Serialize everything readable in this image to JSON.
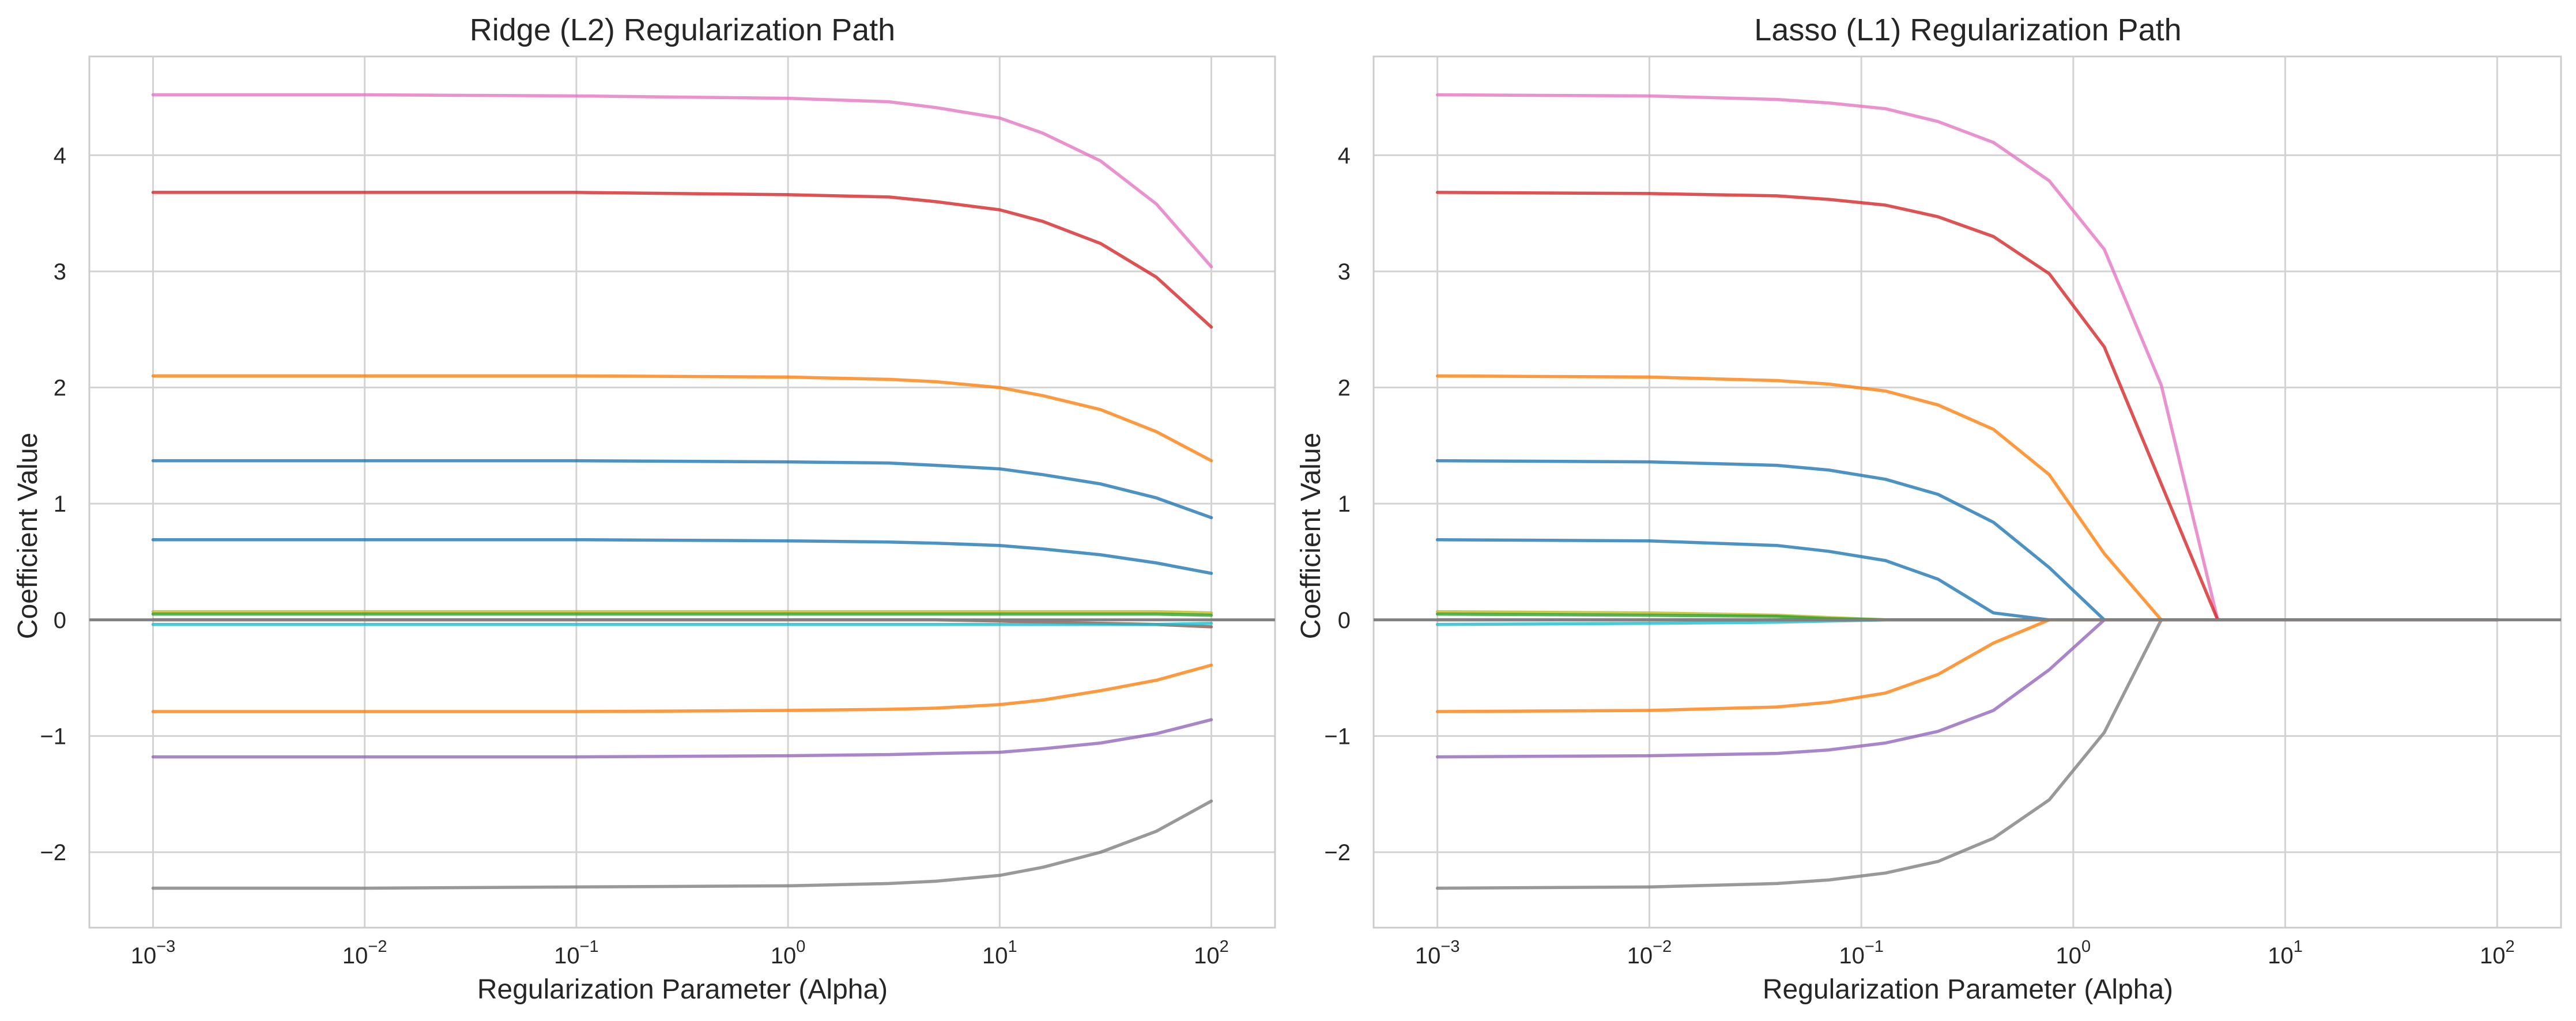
{
  "chart_data": [
    {
      "type": "line",
      "title": "Ridge (L2) Regularization Path",
      "xlabel": "Regularization Parameter (Alpha)",
      "ylabel": "Coefficient Value",
      "xscale": "log",
      "xlim": [
        0.0005,
        200
      ],
      "ylim": [
        -2.65,
        4.85
      ],
      "grid": true,
      "legend": "none",
      "reference_line_y": 0,
      "x_ticks": [
        {
          "base": "10",
          "exp": "−3"
        },
        {
          "base": "10",
          "exp": "−2"
        },
        {
          "base": "10",
          "exp": "−1"
        },
        {
          "base": "10",
          "exp": "0"
        },
        {
          "base": "10",
          "exp": "1"
        },
        {
          "base": "10",
          "exp": "2"
        }
      ],
      "y_ticks": [
        "−2",
        "−1",
        "0",
        "1",
        "2",
        "3",
        "4"
      ],
      "x": [
        0.001,
        0.01,
        0.1,
        1,
        3,
        5,
        10,
        16,
        30,
        55,
        100
      ],
      "series": [
        {
          "color": "#e377c2",
          "values": [
            4.52,
            4.52,
            4.51,
            4.49,
            4.46,
            4.41,
            4.32,
            4.19,
            3.95,
            3.58,
            3.04
          ]
        },
        {
          "color": "#d62728",
          "values": [
            3.68,
            3.68,
            3.68,
            3.66,
            3.64,
            3.6,
            3.53,
            3.43,
            3.24,
            2.95,
            2.52
          ]
        },
        {
          "color": "#ff7f0e",
          "values": [
            2.1,
            2.1,
            2.1,
            2.09,
            2.07,
            2.05,
            2.0,
            1.93,
            1.81,
            1.62,
            1.37
          ]
        },
        {
          "color": "#1f77b4",
          "values": [
            1.37,
            1.37,
            1.37,
            1.36,
            1.35,
            1.33,
            1.3,
            1.25,
            1.17,
            1.05,
            0.88
          ]
        },
        {
          "color": "#1f77b4",
          "values": [
            0.69,
            0.69,
            0.69,
            0.68,
            0.67,
            0.66,
            0.64,
            0.61,
            0.56,
            0.49,
            0.4
          ]
        },
        {
          "color": "#8c564b",
          "values": [
            0.0,
            0.0,
            0.0,
            0.0,
            0.0,
            0.0,
            -0.01,
            -0.02,
            -0.03,
            -0.04,
            -0.06
          ]
        },
        {
          "color": "#bcbd22",
          "values": [
            0.07,
            0.07,
            0.07,
            0.07,
            0.07,
            0.07,
            0.07,
            0.07,
            0.07,
            0.07,
            0.06
          ]
        },
        {
          "color": "#2ca02c",
          "values": [
            0.05,
            0.05,
            0.05,
            0.05,
            0.05,
            0.05,
            0.05,
            0.05,
            0.05,
            0.05,
            0.04
          ]
        },
        {
          "color": "#17becf",
          "values": [
            -0.04,
            -0.04,
            -0.04,
            -0.04,
            -0.04,
            -0.04,
            -0.04,
            -0.04,
            -0.04,
            -0.04,
            -0.03
          ]
        },
        {
          "color": "#ff7f0e",
          "values": [
            -0.79,
            -0.79,
            -0.79,
            -0.78,
            -0.77,
            -0.76,
            -0.73,
            -0.69,
            -0.61,
            -0.52,
            -0.39
          ]
        },
        {
          "color": "#9467bd",
          "values": [
            -1.18,
            -1.18,
            -1.18,
            -1.17,
            -1.16,
            -1.15,
            -1.14,
            -1.11,
            -1.06,
            -0.98,
            -0.86
          ]
        },
        {
          "color": "#7f7f7f",
          "values": [
            -2.31,
            -2.31,
            -2.3,
            -2.29,
            -2.27,
            -2.25,
            -2.2,
            -2.13,
            -2.0,
            -1.82,
            -1.56
          ]
        }
      ]
    },
    {
      "type": "line",
      "title": "Lasso (L1) Regularization Path",
      "xlabel": "Regularization Parameter (Alpha)",
      "ylabel": "Coefficient Value",
      "xscale": "log",
      "xlim": [
        0.0005,
        200
      ],
      "ylim": [
        -2.65,
        4.85
      ],
      "grid": true,
      "legend": "none",
      "reference_line_y": 0,
      "x_ticks": [
        {
          "base": "10",
          "exp": "−3"
        },
        {
          "base": "10",
          "exp": "−2"
        },
        {
          "base": "10",
          "exp": "−1"
        },
        {
          "base": "10",
          "exp": "0"
        },
        {
          "base": "10",
          "exp": "1"
        },
        {
          "base": "10",
          "exp": "2"
        }
      ],
      "y_ticks": [
        "−2",
        "−1",
        "0",
        "1",
        "2",
        "3",
        "4"
      ],
      "x": [
        0.001,
        0.01,
        0.04,
        0.07,
        0.13,
        0.23,
        0.42,
        0.77,
        1.4,
        2.6,
        4.8,
        10,
        100
      ],
      "series": [
        {
          "color": "#e377c2",
          "values": [
            4.52,
            4.51,
            4.48,
            4.45,
            4.4,
            4.29,
            4.11,
            3.78,
            3.19,
            2.02,
            0.0,
            0.0,
            0.0
          ]
        },
        {
          "color": "#d62728",
          "values": [
            3.68,
            3.67,
            3.65,
            3.62,
            3.57,
            3.47,
            3.3,
            2.98,
            2.35,
            1.17,
            0.0,
            0.0,
            0.0
          ]
        },
        {
          "color": "#ff7f0e",
          "values": [
            2.1,
            2.09,
            2.06,
            2.03,
            1.97,
            1.85,
            1.64,
            1.25,
            0.57,
            0.0,
            0.0,
            0.0,
            0.0
          ]
        },
        {
          "color": "#1f77b4",
          "values": [
            1.37,
            1.36,
            1.33,
            1.29,
            1.21,
            1.08,
            0.84,
            0.45,
            0.0,
            0.0,
            0.0,
            0.0,
            0.0
          ]
        },
        {
          "color": "#1f77b4",
          "values": [
            0.69,
            0.68,
            0.64,
            0.59,
            0.51,
            0.35,
            0.06,
            0.0,
            0.0,
            0.0,
            0.0,
            0.0,
            0.0
          ]
        },
        {
          "color": "#bcbd22",
          "values": [
            0.07,
            0.06,
            0.04,
            0.02,
            0.0,
            0.0,
            0.0,
            0.0,
            0.0,
            0.0,
            0.0,
            0.0,
            0.0
          ]
        },
        {
          "color": "#2ca02c",
          "values": [
            0.05,
            0.04,
            0.03,
            0.01,
            0.0,
            0.0,
            0.0,
            0.0,
            0.0,
            0.0,
            0.0,
            0.0,
            0.0
          ]
        },
        {
          "color": "#17becf",
          "values": [
            -0.04,
            -0.03,
            -0.02,
            -0.01,
            0.0,
            0.0,
            0.0,
            0.0,
            0.0,
            0.0,
            0.0,
            0.0,
            0.0
          ]
        },
        {
          "color": "#ff7f0e",
          "values": [
            -0.79,
            -0.78,
            -0.75,
            -0.71,
            -0.63,
            -0.47,
            -0.2,
            0.0,
            0.0,
            0.0,
            0.0,
            0.0,
            0.0
          ]
        },
        {
          "color": "#9467bd",
          "values": [
            -1.18,
            -1.17,
            -1.15,
            -1.12,
            -1.06,
            -0.96,
            -0.78,
            -0.43,
            0.0,
            0.0,
            0.0,
            0.0,
            0.0
          ]
        },
        {
          "color": "#7f7f7f",
          "values": [
            -2.31,
            -2.3,
            -2.27,
            -2.24,
            -2.18,
            -2.08,
            -1.88,
            -1.55,
            -0.97,
            0.0,
            0.0,
            0.0,
            0.0
          ]
        },
        {
          "color": "#8c564b",
          "values": [
            0.0,
            0.0,
            0.0,
            0.0,
            0.0,
            0.0,
            0.0,
            0.0,
            0.0,
            0.0,
            0.0,
            0.0,
            0.0
          ]
        }
      ]
    }
  ]
}
